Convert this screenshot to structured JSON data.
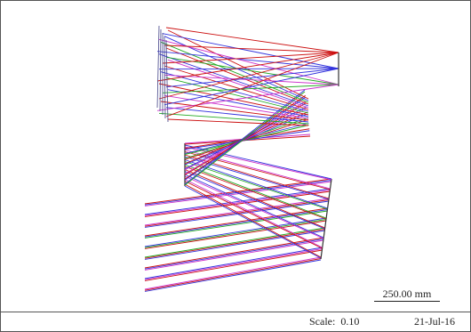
{
  "scale_bar": {
    "label": "250.00 mm"
  },
  "footer": {
    "scale_label": "Scale:",
    "scale_value": "0.10",
    "date": "21-Jul-16"
  },
  "ray_colors": {
    "primary": "#cc1111",
    "secondary": "#3333dd",
    "tertiary": "#22aa22",
    "accent": "#cc33cc"
  }
}
